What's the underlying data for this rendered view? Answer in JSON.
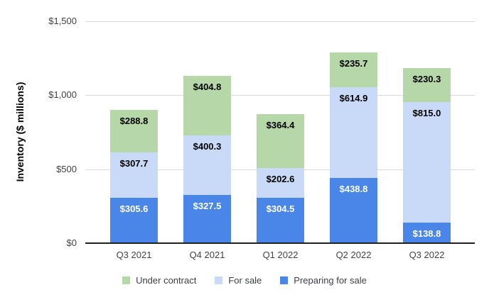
{
  "chart_data": {
    "type": "bar",
    "stacked": true,
    "title": "",
    "xlabel": "",
    "ylabel": "Inventory ($ millions)",
    "categories": [
      "Q3 2021",
      "Q4 2021",
      "Q1 2022",
      "Q2 2022",
      "Q3 2022"
    ],
    "series": [
      {
        "name": "Preparing for sale",
        "color": "#4a86e8",
        "label_text_color": "#ffffff",
        "values": [
          305.6,
          327.5,
          304.5,
          438.8,
          138.8
        ],
        "labels": [
          "$305.6",
          "$327.5",
          "$304.5",
          "$438.8",
          "$138.8"
        ]
      },
      {
        "name": "For sale",
        "color": "#c9daf8",
        "label_text_color": "#000000",
        "values": [
          307.7,
          400.3,
          202.6,
          614.9,
          815.0
        ],
        "labels": [
          "$307.7",
          "$400.3",
          "$202.6",
          "$614.9",
          "$815.0"
        ]
      },
      {
        "name": "Under contract",
        "color": "#b6d7a8",
        "label_text_color": "#000000",
        "values": [
          288.8,
          404.8,
          364.4,
          235.7,
          230.3
        ],
        "labels": [
          "$288.8",
          "$404.8",
          "$364.4",
          "$235.7",
          "$230.3"
        ]
      }
    ],
    "ylim": [
      0,
      1500
    ],
    "y_ticks": [
      {
        "value": 0,
        "label": "$0"
      },
      {
        "value": 500,
        "label": "$500"
      },
      {
        "value": 1000,
        "label": "$1,000"
      },
      {
        "value": 1500,
        "label": "$1,500"
      }
    ],
    "grid": true,
    "legend": {
      "position": "bottom",
      "items": [
        {
          "label": "Under contract",
          "color": "#b6d7a8"
        },
        {
          "label": "For sale",
          "color": "#c9daf8"
        },
        {
          "label": "Preparing for sale",
          "color": "#4a86e8"
        }
      ]
    }
  }
}
